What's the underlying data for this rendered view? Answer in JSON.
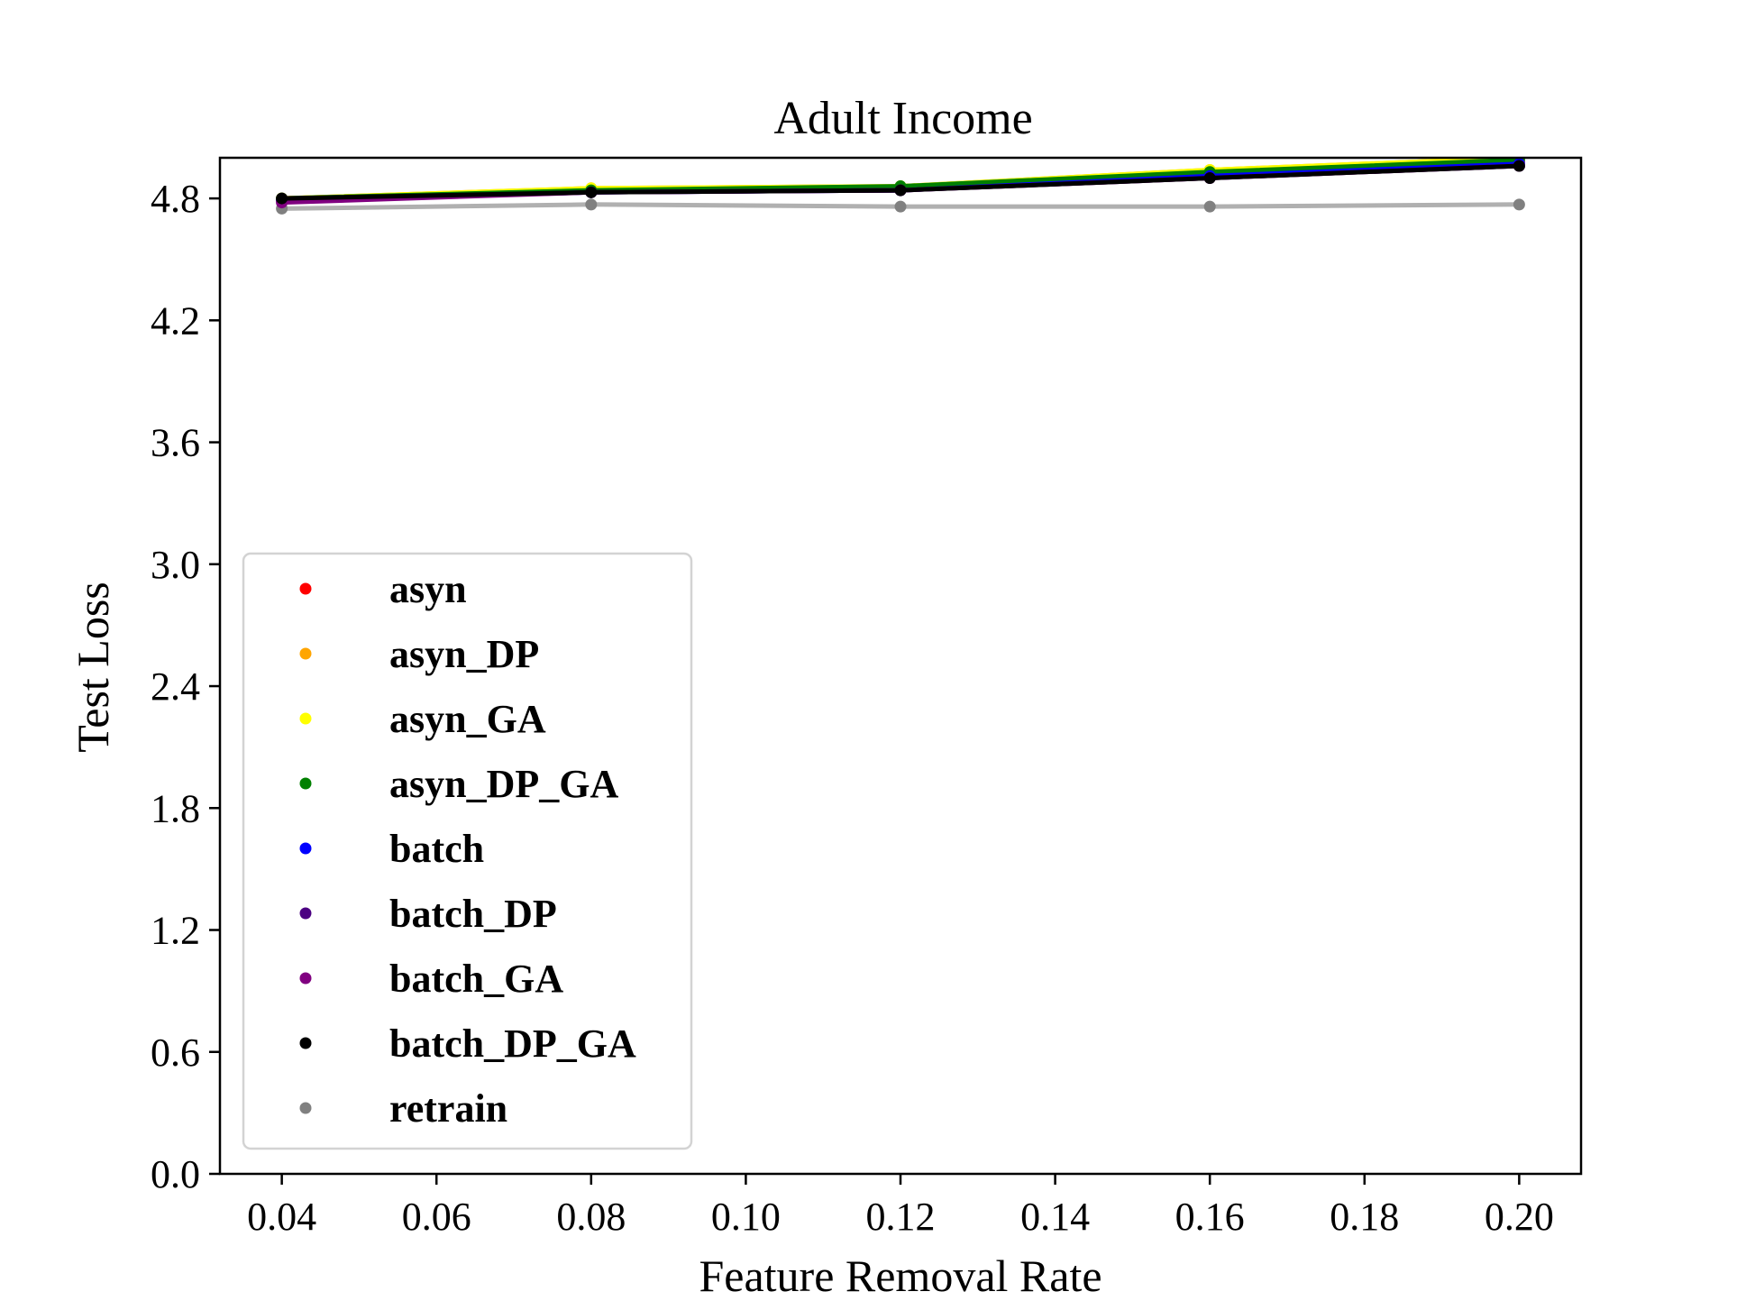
{
  "chart_data": {
    "type": "line",
    "title": "Adult Income",
    "xlabel": "Feature Removal Rate",
    "ylabel": "Test Loss",
    "x": [
      0.04,
      0.08,
      0.12,
      0.16,
      0.2
    ],
    "xlim": [
      0.032,
      0.208
    ],
    "ylim": [
      0.0,
      5.0
    ],
    "xticks": [
      "0.04",
      "0.06",
      "0.08",
      "0.10",
      "0.12",
      "0.14",
      "0.16",
      "0.18",
      "0.20"
    ],
    "yticks": [
      "0.0",
      "0.6",
      "1.2",
      "1.8",
      "2.4",
      "3.0",
      "3.6",
      "4.2",
      "4.8"
    ],
    "grid": false,
    "legend_position": "lower-left",
    "series": [
      {
        "name": "asyn",
        "color": "#ff0000",
        "values": [
          4.8,
          4.84,
          4.85,
          4.92,
          4.98
        ]
      },
      {
        "name": "asyn_DP",
        "color": "#ffa500",
        "values": [
          4.8,
          4.85,
          4.86,
          4.94,
          5.0
        ]
      },
      {
        "name": "asyn_GA",
        "color": "#ffff00",
        "values": [
          4.8,
          4.85,
          4.86,
          4.94,
          5.0
        ]
      },
      {
        "name": "asyn_DP_GA",
        "color": "#008000",
        "values": [
          4.8,
          4.84,
          4.86,
          4.93,
          4.99
        ]
      },
      {
        "name": "batch",
        "color": "#0000ff",
        "values": [
          4.79,
          4.83,
          4.84,
          4.91,
          4.97
        ]
      },
      {
        "name": "batch_DP",
        "color": "#4b0082",
        "values": [
          4.79,
          4.83,
          4.84,
          4.9,
          4.96
        ]
      },
      {
        "name": "batch_GA",
        "color": "#800080",
        "values": [
          4.78,
          4.83,
          4.84,
          4.9,
          4.96
        ]
      },
      {
        "name": "batch_DP_GA",
        "color": "#000000",
        "values": [
          4.8,
          4.83,
          4.84,
          4.9,
          4.96
        ]
      },
      {
        "name": "retrain",
        "color": "#808080",
        "line_color": "#b0b0b0",
        "values": [
          4.75,
          4.77,
          4.76,
          4.76,
          4.77
        ]
      }
    ]
  }
}
